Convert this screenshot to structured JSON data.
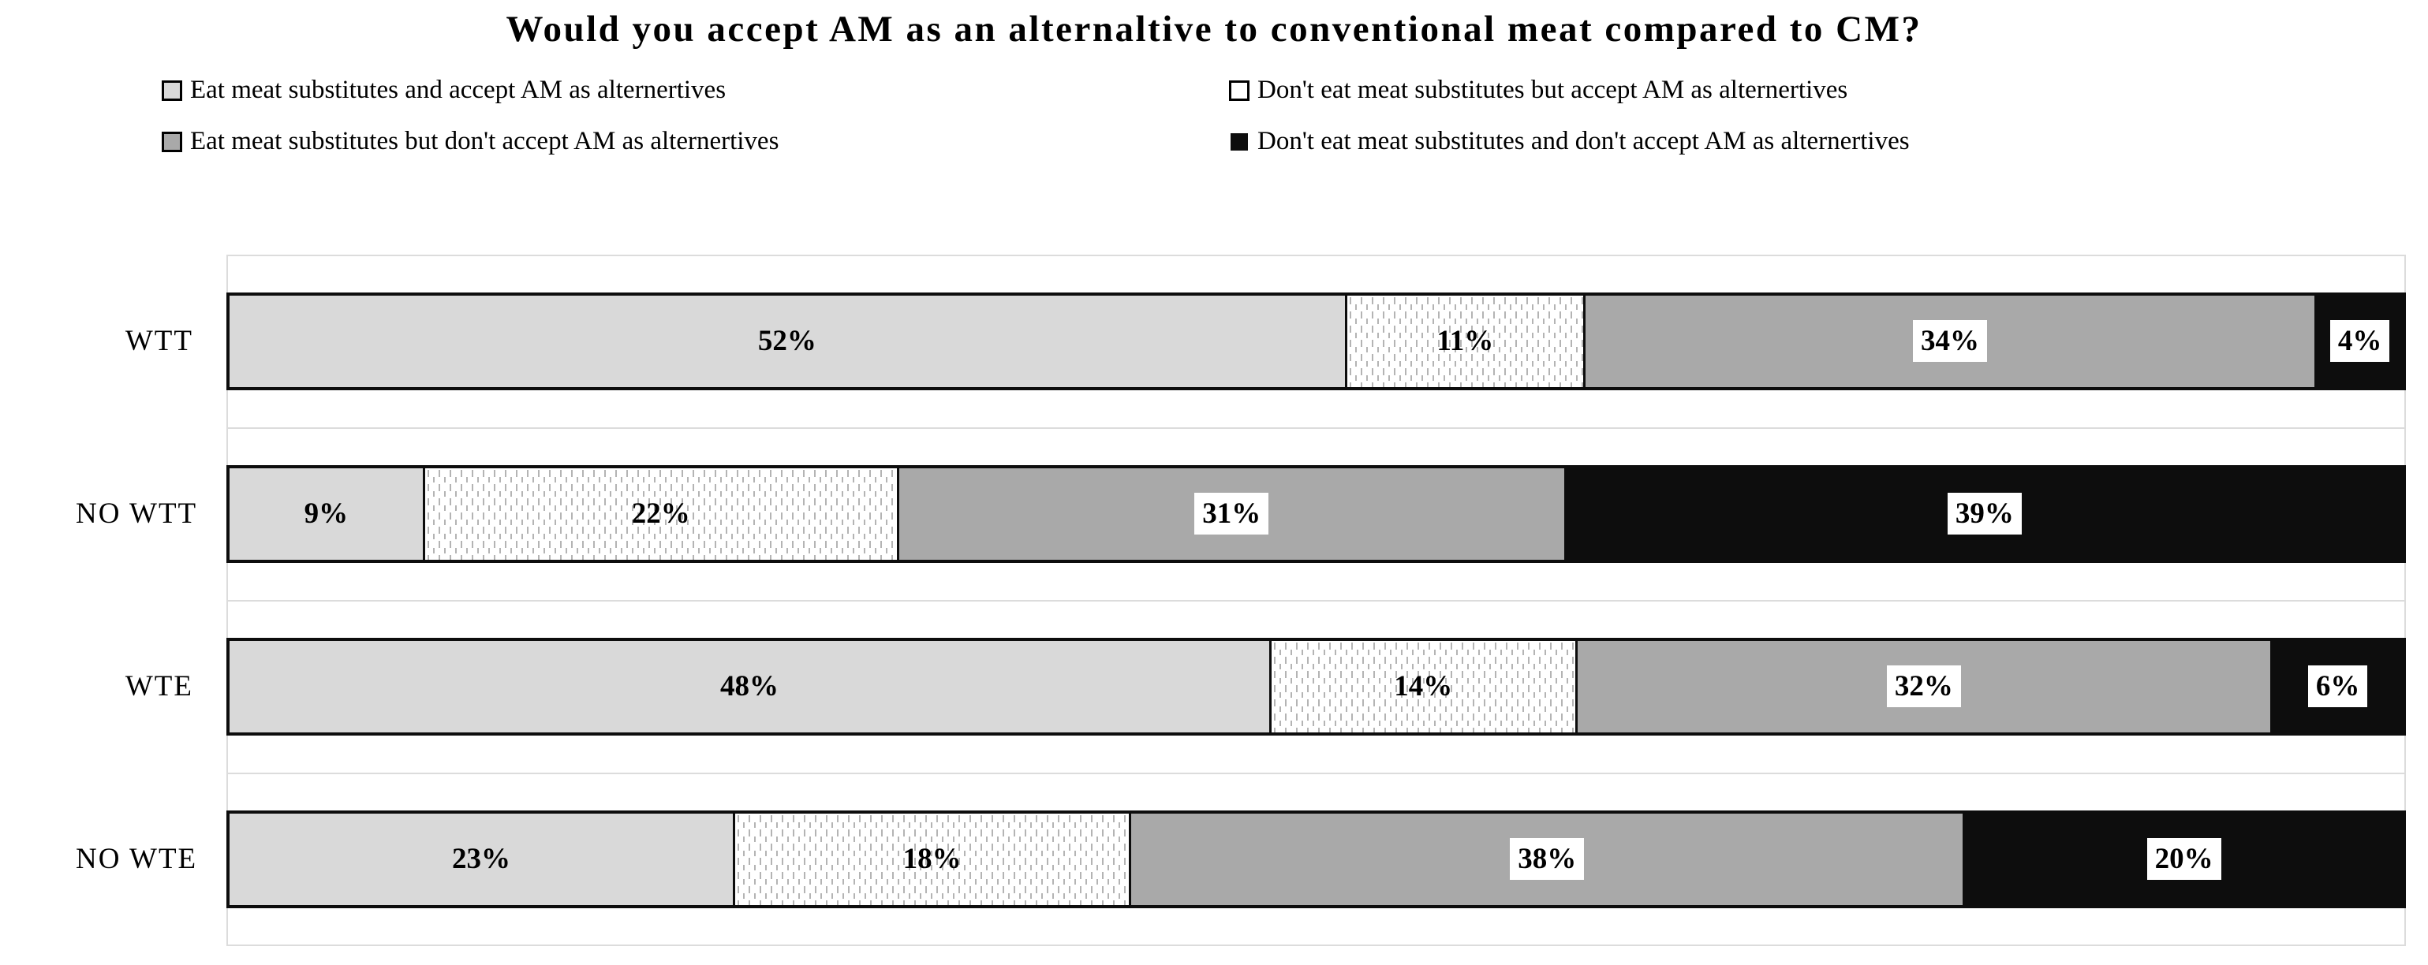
{
  "title": "Would you accept AM as an alternaltive to conventional meat compared to CM?",
  "colors": {
    "segment_light_gray": "#d9d9d9",
    "segment_dotted_bg": "#ffffff",
    "segment_dotted_dash": "#b4b4b4",
    "segment_mid_gray": "#a9a9a9",
    "segment_black": "#0d0d0d",
    "gridline": "#dcdcdc",
    "value_label_box": "#ffffff"
  },
  "legend": {
    "items": [
      {
        "label": "Eat meat substitutes and accept AM as alternertives",
        "fill": "light-gray-swatch"
      },
      {
        "label": "Don't eat meat substitutes but accept AM as alternertives",
        "fill": "white-swatch"
      },
      {
        "label": "Eat meat substitutes but don't accept AM as alternertives",
        "fill": "gray-swatch"
      },
      {
        "label": "Don't eat meat substitutes and don't accept AM as alternertives",
        "fill": "black-swatch"
      }
    ]
  },
  "chart_data": {
    "type": "bar",
    "orientation": "horizontal",
    "stacked": true,
    "title": "Would you accept AM as an alternaltive to conventional meat compared to CM?",
    "categories": [
      "WTT",
      "NO WTT",
      "WTE",
      "NO WTE"
    ],
    "series": [
      {
        "name": "Eat meat substitutes and accept AM as alternertives",
        "fill": "light-gray",
        "values": [
          52,
          9,
          48,
          23
        ]
      },
      {
        "name": "Don't eat meat substitutes but accept AM as alternertives",
        "fill": "dotted-white",
        "values": [
          11,
          22,
          14,
          18
        ]
      },
      {
        "name": "Eat meat substitutes but don't accept AM as alternertives",
        "fill": "mid-gray",
        "values": [
          34,
          31,
          32,
          38
        ]
      },
      {
        "name": "Don't eat meat substitutes and don't accept AM as alternertives",
        "fill": "black",
        "values": [
          4,
          39,
          6,
          20
        ]
      }
    ],
    "value_suffix": "%",
    "xlim": [
      0,
      100
    ],
    "xlabel": "",
    "ylabel": "",
    "grid": "category-separator-lines-only",
    "legend_position": "top"
  }
}
